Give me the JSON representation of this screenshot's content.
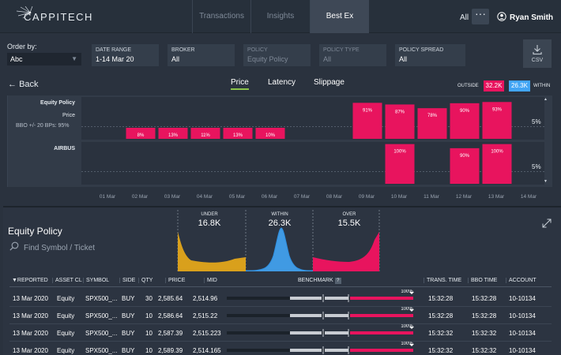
{
  "header": {
    "brand": "CAPPITECH",
    "tabs": [
      {
        "label": "Transactions",
        "active": false
      },
      {
        "label": "Insights",
        "active": false
      },
      {
        "label": "Best Ex",
        "active": true
      }
    ],
    "filter_all": "All",
    "more": "···",
    "user_name": "Ryan Smith"
  },
  "filters": {
    "order_by_label": "Order by:",
    "order_by_value": "Abc",
    "fields": [
      {
        "label": "DATE RANGE",
        "value": "1-14 Mar 20",
        "enabled": true
      },
      {
        "label": "BROKER",
        "value": "All",
        "enabled": true
      },
      {
        "label": "POLICY",
        "value": "Equity Policy",
        "enabled": false
      },
      {
        "label": "POLICY TYPE",
        "value": "All",
        "enabled": false
      },
      {
        "label": "POLICY SPREAD",
        "value": "All",
        "enabled": true
      }
    ],
    "csv_label": "CSV"
  },
  "toolbar": {
    "back_label": "Back",
    "metric_tabs": [
      {
        "label": "Price",
        "active": true
      },
      {
        "label": "Latency",
        "active": false
      },
      {
        "label": "Slippage",
        "active": false
      }
    ],
    "legend_outside_label": "OUTSIDE",
    "legend_outside_value": "32.2K",
    "legend_within_value": "26.3K",
    "legend_within_label": "WITHIN"
  },
  "colors": {
    "outside": "#e8145e",
    "within": "#42a5f5",
    "under": "#d9a01c",
    "bench_mark": "#c8ccd2"
  },
  "chart_data": {
    "type": "bar",
    "x": [
      "01 Mar",
      "02 Mar",
      "03 Mar",
      "04 Mar",
      "05 Mar",
      "06 Mar",
      "07 Mar",
      "08 Mar",
      "09 Mar",
      "10 Mar",
      "11 Mar",
      "12 Mar",
      "13 Mar",
      "14 Mar"
    ],
    "threshold_label": "5%",
    "rows": [
      {
        "title": "Equity Policy",
        "subtitle": "Price",
        "note": "BBO +/- 20 BPs: 95%",
        "values": [
          null,
          8,
          13,
          11,
          13,
          10,
          null,
          null,
          91,
          87,
          78,
          90,
          93,
          null
        ],
        "labels": [
          "",
          "8%",
          "13%",
          "11%",
          "13%",
          "10%",
          "",
          "",
          "91%",
          "87%",
          "78%",
          "90%",
          "93%",
          ""
        ]
      },
      {
        "title": "AIRBUS",
        "values": [
          null,
          null,
          null,
          null,
          null,
          null,
          null,
          null,
          null,
          100,
          null,
          90,
          100,
          null
        ],
        "labels": [
          "",
          "",
          "",
          "",
          "",
          "",
          "",
          "",
          "",
          "100%",
          "",
          "90%",
          "100%",
          ""
        ]
      }
    ]
  },
  "lower": {
    "title": "Equity Policy",
    "search_placeholder": "Find Symbol / Ticket",
    "distribution": [
      {
        "label": "UNDER",
        "value": "16.8K"
      },
      {
        "label": "WITHIN",
        "value": "26.3K"
      },
      {
        "label": "OVER",
        "value": "15.5K"
      }
    ],
    "columns": [
      "▼REPORTED",
      "ASSET CL",
      "SYMBOL",
      "SIDE",
      "QTY",
      "PRICE",
      "MID",
      "BENCHMARK",
      "TRANS. TIME",
      "BBO TIME",
      "ACCOUNT"
    ],
    "benchmark_help": "?",
    "rows": [
      {
        "reported": "13 Mar 2020",
        "asset": "Equity",
        "symbol": "SPX500_...",
        "side": "BUY",
        "qty": "30",
        "price": "2,585.64",
        "mid": "2,514.96",
        "bench_label": "100%",
        "bench_pct": 1.0,
        "trans_time": "15:32:28",
        "bbo_time": "15:32:28",
        "account": "10-10134"
      },
      {
        "reported": "13 Mar 2020",
        "asset": "Equity",
        "symbol": "SPX500_...",
        "side": "BUY",
        "qty": "10",
        "price": "2,586.64",
        "mid": "2,515.22",
        "bench_label": "100%",
        "bench_pct": 1.0,
        "trans_time": "15:32:28",
        "bbo_time": "15:32:28",
        "account": "10-10134"
      },
      {
        "reported": "13 Mar 2020",
        "asset": "Equity",
        "symbol": "SPX500_...",
        "side": "BUY",
        "qty": "10",
        "price": "2,587.39",
        "mid": "2,515.223",
        "bench_label": "100%",
        "bench_pct": 1.0,
        "trans_time": "15:32:32",
        "bbo_time": "15:32:32",
        "account": "10-10134"
      },
      {
        "reported": "13 Mar 2020",
        "asset": "Equity",
        "symbol": "SPX500_...",
        "side": "BUY",
        "qty": "10",
        "price": "2,589.39",
        "mid": "2,514.165",
        "bench_label": "100%",
        "bench_pct": 1.0,
        "trans_time": "15:32:32",
        "bbo_time": "15:32:32",
        "account": "10-10134"
      }
    ]
  }
}
